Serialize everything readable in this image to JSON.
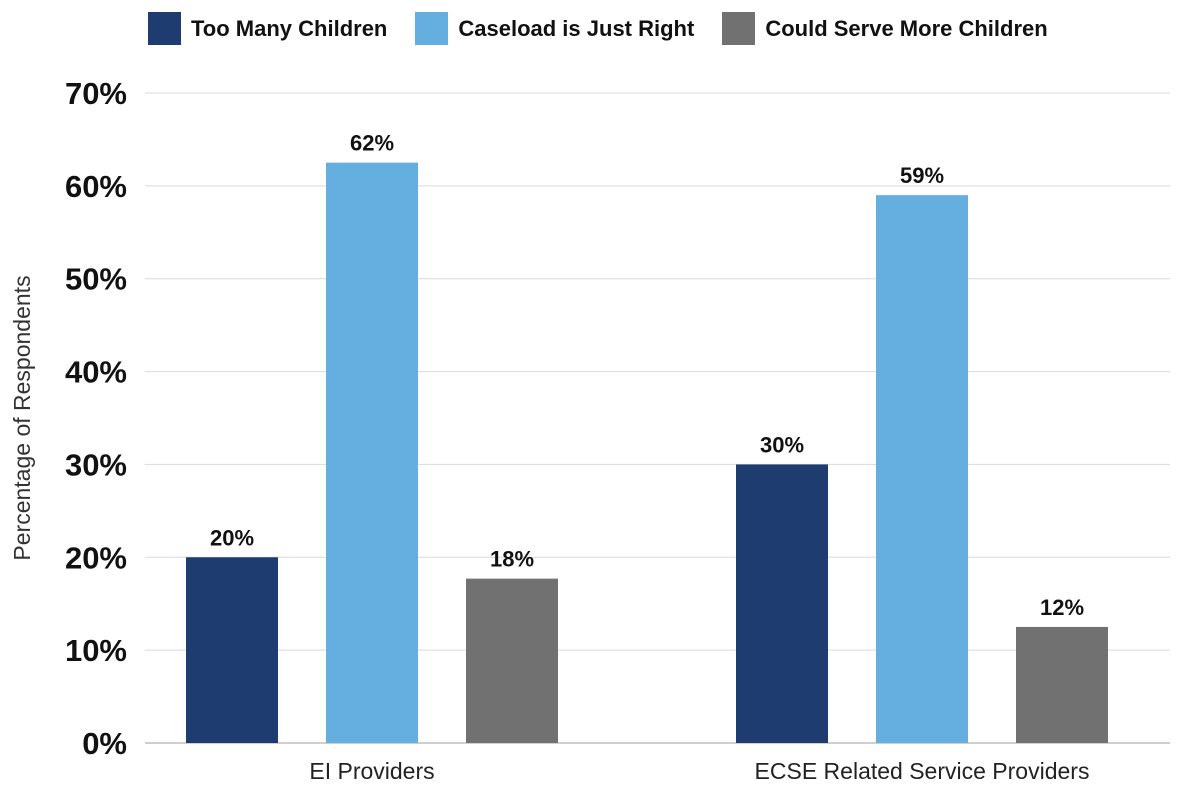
{
  "colors": {
    "too_many": "#1f3c71",
    "just_right": "#65aee0",
    "serve_more": "#717171",
    "grid": "#d9d9d9",
    "axis": "#bfbfbf"
  },
  "legend": {
    "items": [
      {
        "label": "Too Many Children",
        "color": "#1f3c71"
      },
      {
        "label": "Caseload is Just Right",
        "color": "#65aee0"
      },
      {
        "label": "Could Serve More Children",
        "color": "#717171"
      }
    ]
  },
  "chart_data": {
    "type": "bar",
    "title": "",
    "xlabel": "",
    "ylabel": "Percentage of Respondents",
    "ylim": [
      0,
      70
    ],
    "yticks": [
      "0%",
      "10%",
      "20%",
      "30%",
      "40%",
      "50%",
      "60%",
      "70%"
    ],
    "ytick_values": [
      0,
      10,
      20,
      30,
      40,
      50,
      60,
      70
    ],
    "categories": [
      "EI Providers",
      "ECSE Related Service Providers"
    ],
    "series": [
      {
        "name": "Too Many Children",
        "values": [
          20,
          30
        ],
        "labels": [
          "20%",
          "30%"
        ],
        "color": "#1f3c71"
      },
      {
        "name": "Caseload is Just Right",
        "values": [
          62.5,
          59
        ],
        "labels": [
          "62%",
          "59%"
        ],
        "color": "#65aee0"
      },
      {
        "name": "Could Serve More Children",
        "values": [
          17.7,
          12.5
        ],
        "labels": [
          "18%",
          "12%"
        ],
        "color": "#717171"
      }
    ],
    "grid": true,
    "legend_position": "top"
  }
}
